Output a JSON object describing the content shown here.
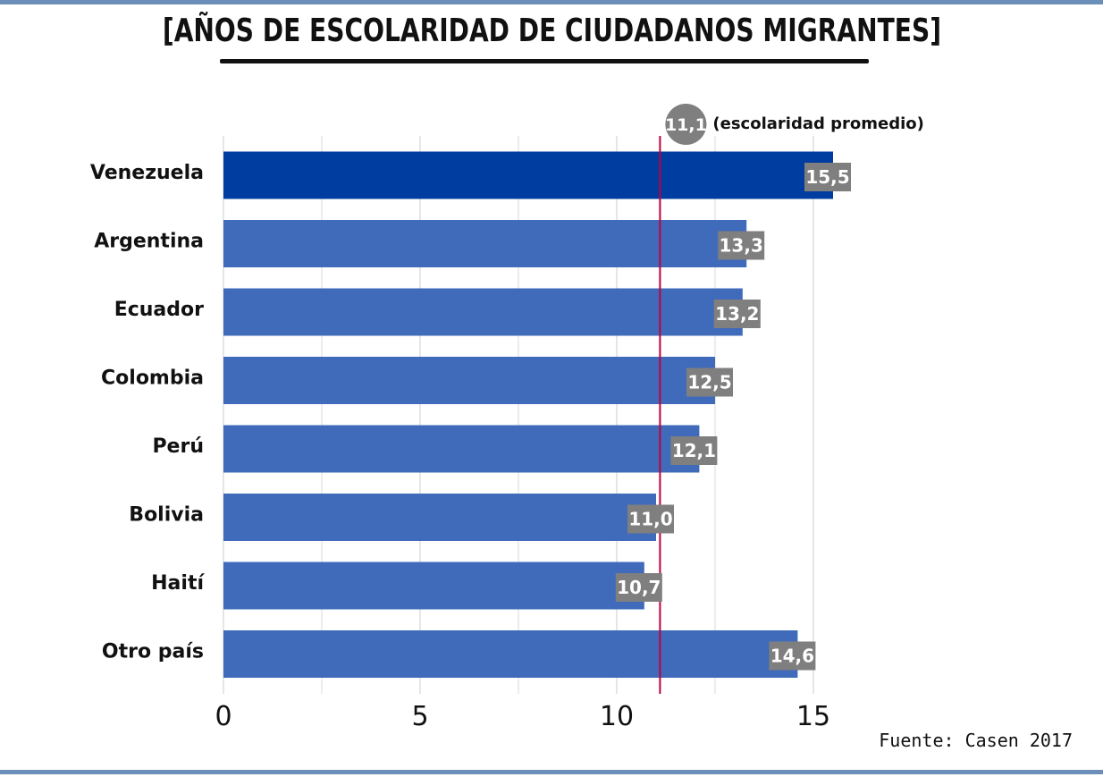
{
  "title": "[AÑOS DE ESCOLARIDAD DE CIUDADANOS MIGRANTES]",
  "source": "Fuente: Casen 2017",
  "chart_data": {
    "type": "bar",
    "orientation": "horizontal",
    "categories": [
      "Venezuela",
      "Argentina",
      "Ecuador",
      "Colombia",
      "Perú",
      "Bolivia",
      "Haití",
      "Otro país"
    ],
    "values": [
      15.5,
      13.3,
      13.2,
      12.5,
      12.1,
      11.0,
      10.7,
      14.6
    ],
    "value_labels": [
      "15,5",
      "13,3",
      "13,2",
      "12,5",
      "12,1",
      "11,0",
      "10,7",
      "14,6"
    ],
    "highlight_index": 0,
    "colors": {
      "bar": "#3f6bba",
      "highlight": "#003da0",
      "label_bg": "#7f7f7f",
      "reference_line": "#c0003c",
      "grid": "#e6e6e6"
    },
    "x_ticks": [
      0,
      5,
      10,
      15
    ],
    "x_tick_labels": [
      "0",
      "5",
      "10",
      "15"
    ],
    "xlim": [
      0,
      17.2
    ],
    "grid": true,
    "reference_line": {
      "value": 11.1,
      "badge": "11,1",
      "text": "(escolaridad promedio)"
    }
  }
}
